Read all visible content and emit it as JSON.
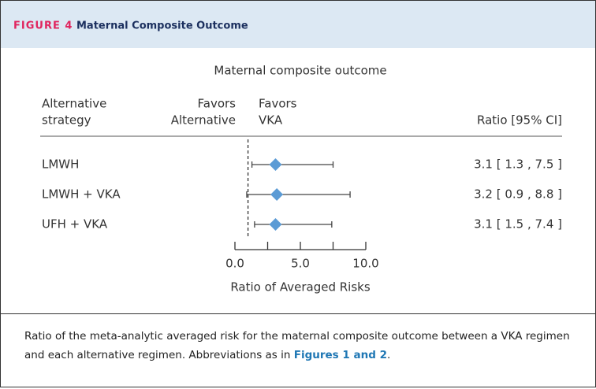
{
  "header": {
    "figure_label": "FIGURE 4",
    "title": "Maternal Composite Outcome"
  },
  "chart_data": {
    "type": "forest",
    "subtitle": "Maternal composite outcome",
    "column_headers": {
      "strategy": [
        "Alternative",
        "strategy"
      ],
      "favors_left": [
        "Favors",
        "Alternative"
      ],
      "favors_right": [
        "Favors",
        "VKA"
      ],
      "ratio": "Ratio [95% CI]"
    },
    "categories": [
      "LMWH",
      "LMWH + VKA",
      "UFH + VKA"
    ],
    "values": [
      3.1,
      3.2,
      3.1
    ],
    "ci_low": [
      1.3,
      0.9,
      1.5
    ],
    "ci_high": [
      7.5,
      8.8,
      7.4
    ],
    "value_labels": [
      "3.1 [ 1.3 , 7.5 ]",
      "3.2 [ 0.9 , 8.8 ]",
      "3.1 [ 1.5 , 7.4 ]"
    ],
    "color": "#5b9bd5",
    "xlim": [
      0,
      10
    ],
    "xticks": [
      {
        "value": 0,
        "label": "0.0"
      },
      {
        "value": 5,
        "label": "5.0"
      },
      {
        "value": 10,
        "label": "10.0"
      }
    ],
    "minor_xticks": [
      2.5,
      7.5
    ],
    "reference_line": 1,
    "xlabel": "Ratio of Averaged Risks"
  },
  "caption": {
    "text": "Ratio of the meta-analytic averaged risk for the maternal composite outcome between a VKA regimen and each alternative regimen. Abbreviations as in ",
    "link": "Figures 1 and 2",
    "end": "."
  }
}
